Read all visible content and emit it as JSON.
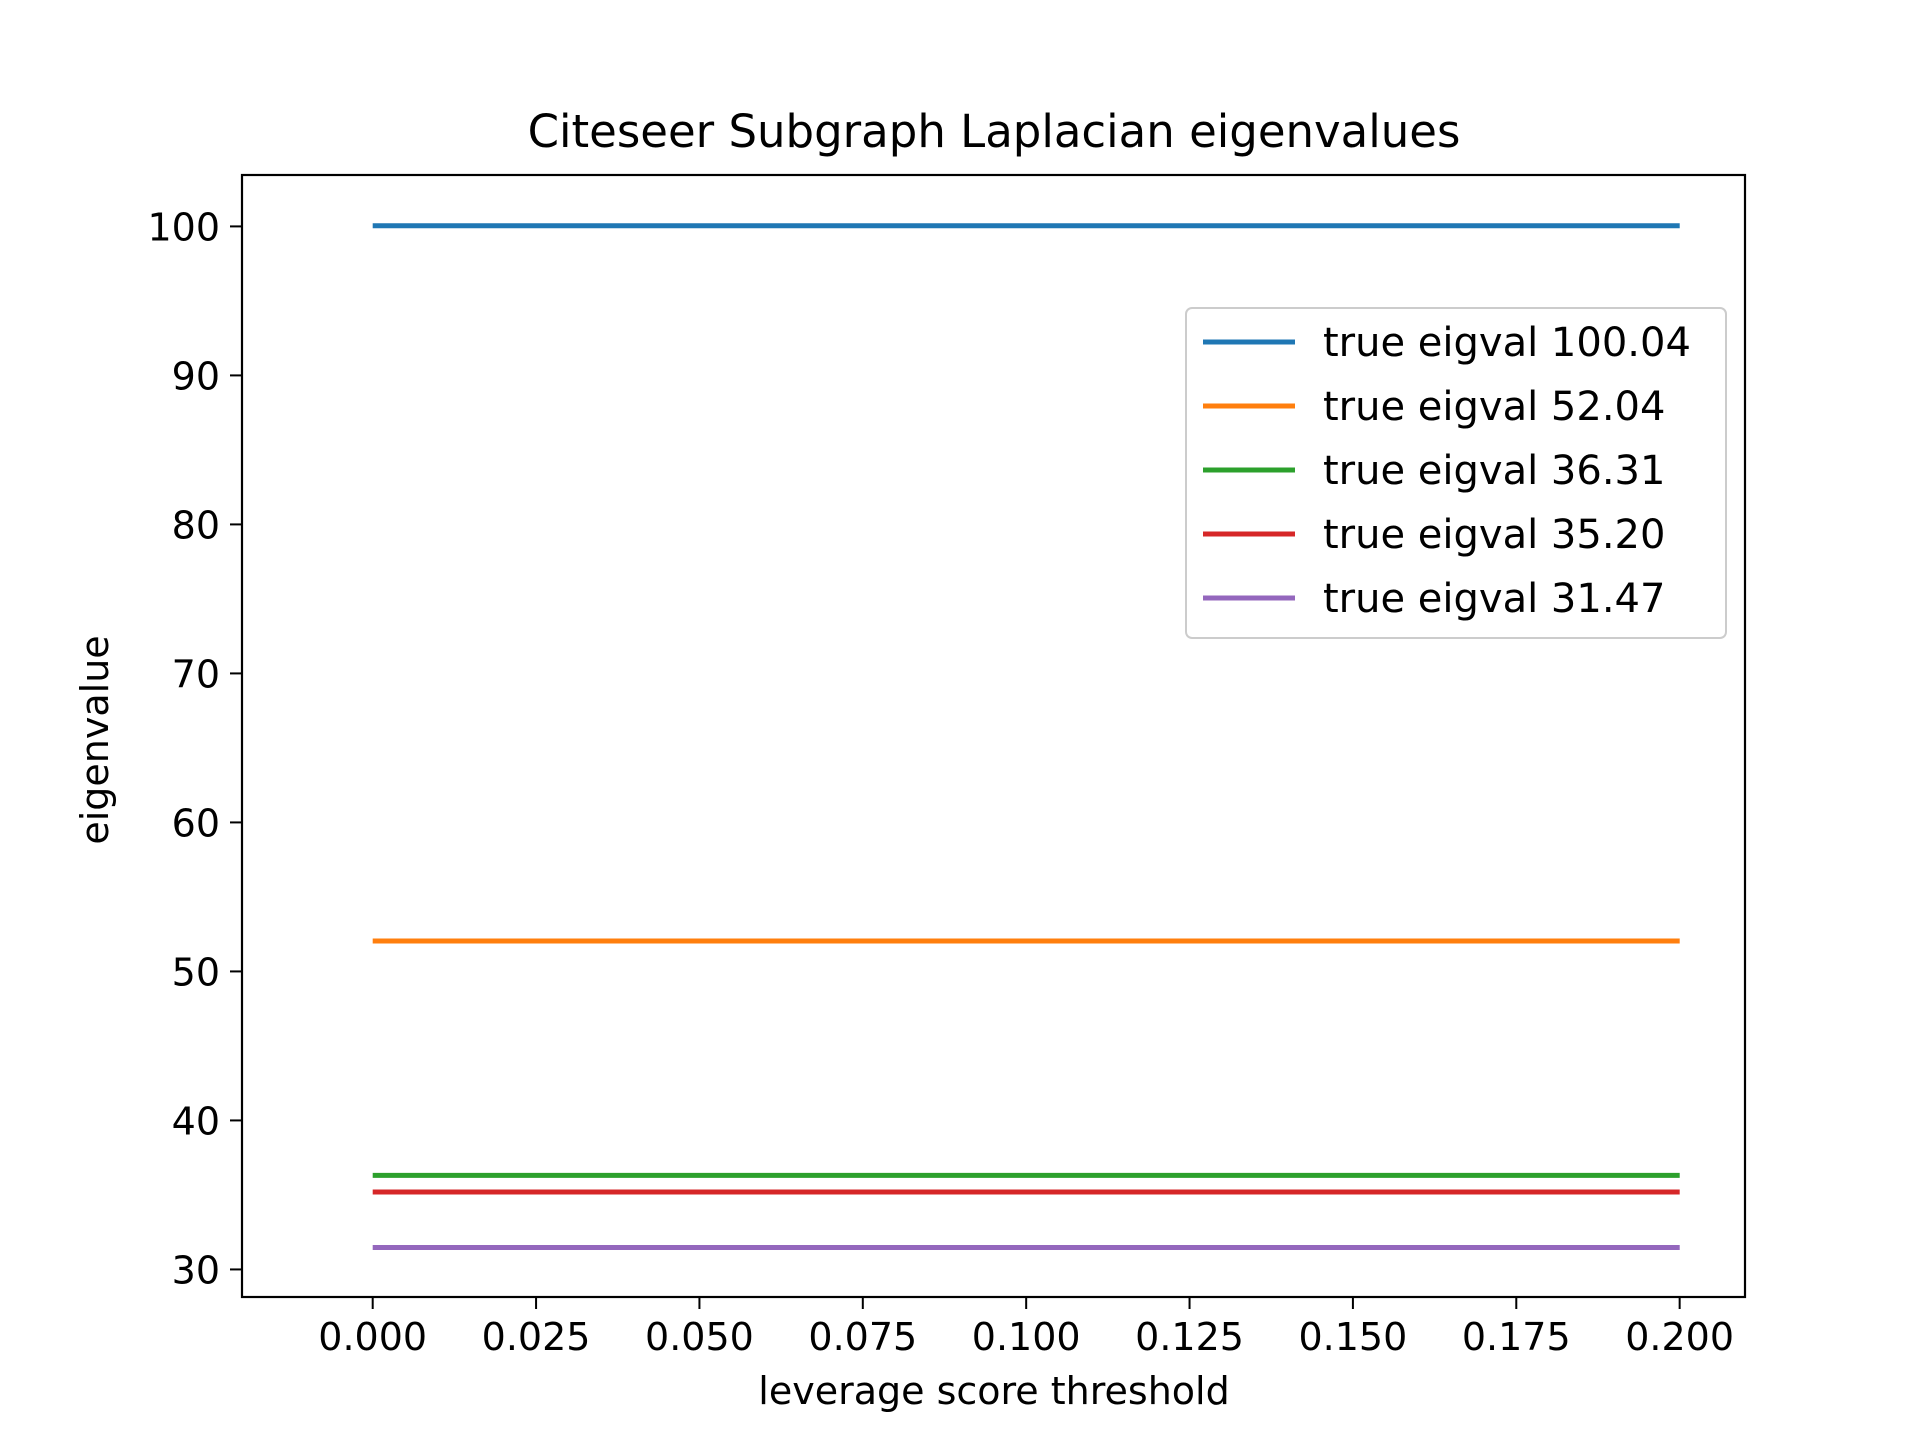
{
  "chart_data": {
    "type": "line",
    "title": "Citeseer Subgraph Laplacian eigenvalues",
    "xlabel": "leverage score threshold",
    "ylabel": "eigenvalue",
    "xlim": [
      -0.02,
      0.21
    ],
    "ylim": [
      28.15,
      103.45
    ],
    "x_ticks": [
      0.0,
      0.025,
      0.05,
      0.075,
      0.1,
      0.125,
      0.15,
      0.175,
      0.2
    ],
    "x_tick_labels": [
      "0.000",
      "0.025",
      "0.050",
      "0.075",
      "0.100",
      "0.125",
      "0.150",
      "0.175",
      "0.200"
    ],
    "y_ticks": [
      30,
      40,
      50,
      60,
      70,
      80,
      90,
      100
    ],
    "y_tick_labels": [
      "30",
      "40",
      "50",
      "60",
      "70",
      "80",
      "90",
      "100"
    ],
    "grid": false,
    "legend": "upper right",
    "series": [
      {
        "name": "true eigval 100.04",
        "color": "#1f77b4",
        "x": [
          0.0,
          0.2
        ],
        "values": [
          100.04,
          100.04
        ]
      },
      {
        "name": "true eigval 52.04",
        "color": "#ff7f0e",
        "x": [
          0.0,
          0.2
        ],
        "values": [
          52.04,
          52.04
        ]
      },
      {
        "name": "true eigval 36.31",
        "color": "#2ca02c",
        "x": [
          0.0,
          0.2
        ],
        "values": [
          36.31,
          36.31
        ]
      },
      {
        "name": "true eigval 35.20",
        "color": "#d62728",
        "x": [
          0.0,
          0.2
        ],
        "values": [
          35.2,
          35.2
        ]
      },
      {
        "name": "true eigval 31.47",
        "color": "#9467bd",
        "x": [
          0.0,
          0.2
        ],
        "values": [
          31.47,
          31.47
        ]
      }
    ]
  }
}
